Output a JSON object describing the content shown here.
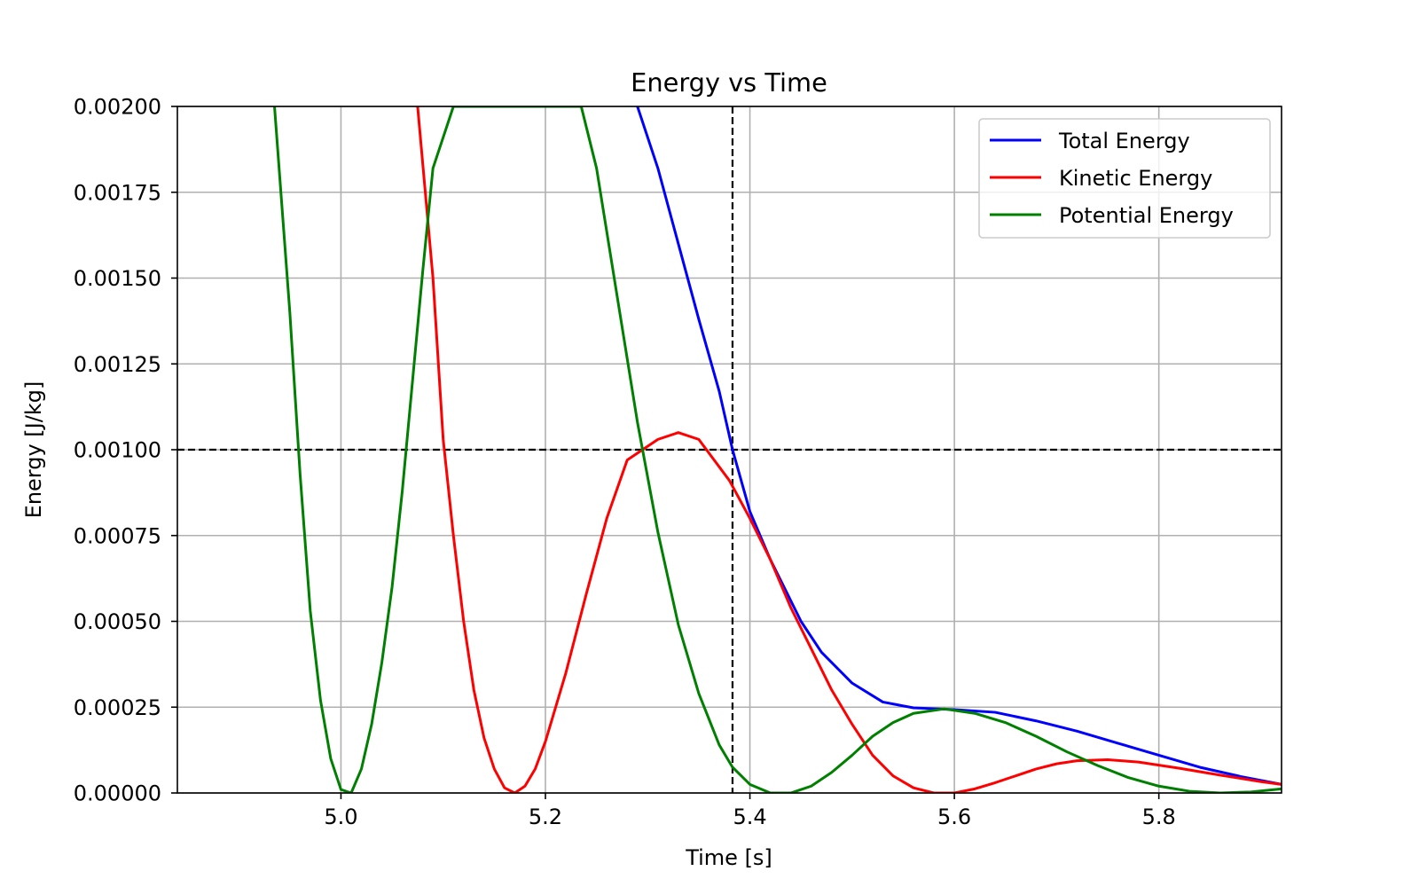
{
  "chart_data": {
    "type": "line",
    "title": "Energy vs Time",
    "xlabel": "Time [s]",
    "ylabel": "Energy [J/kg]",
    "xlim": [
      4.84,
      5.92
    ],
    "ylim": [
      0,
      0.002
    ],
    "grid": true,
    "legend_position": "top-right",
    "x_ticks": [
      5.0,
      5.2,
      5.4,
      5.6,
      5.8
    ],
    "x_tick_labels": [
      "5.0",
      "5.2",
      "5.4",
      "5.6",
      "5.8"
    ],
    "y_ticks": [
      0,
      0.00025,
      0.0005,
      0.00075,
      0.001,
      0.00125,
      0.0015,
      0.00175,
      0.002
    ],
    "y_tick_labels": [
      "0.00000",
      "0.00025",
      "0.00050",
      "0.00075",
      "0.00100",
      "0.00125",
      "0.00150",
      "0.00175",
      "0.00200"
    ],
    "reference_lines": [
      {
        "orientation": "horizontal",
        "value": 0.001,
        "color": "#000000",
        "style": "dashed"
      },
      {
        "orientation": "vertical",
        "value": 5.383,
        "color": "#000000",
        "style": "dashed"
      }
    ],
    "series": [
      {
        "name": "Total Energy",
        "color": "#0000ff",
        "points": [
          [
            5.29,
            0.002
          ],
          [
            5.31,
            0.00182
          ],
          [
            5.33,
            0.0016
          ],
          [
            5.35,
            0.00138
          ],
          [
            5.37,
            0.00117
          ],
          [
            5.383,
            0.001
          ],
          [
            5.4,
            0.00082
          ],
          [
            5.42,
            0.00068
          ],
          [
            5.45,
            0.0005
          ],
          [
            5.47,
            0.00041
          ],
          [
            5.5,
            0.00032
          ],
          [
            5.53,
            0.000265
          ],
          [
            5.56,
            0.000248
          ],
          [
            5.6,
            0.000243
          ],
          [
            5.64,
            0.000235
          ],
          [
            5.68,
            0.00021
          ],
          [
            5.72,
            0.00018
          ],
          [
            5.76,
            0.000145
          ],
          [
            5.8,
            0.00011
          ],
          [
            5.84,
            7.5e-05
          ],
          [
            5.88,
            4.8e-05
          ],
          [
            5.92,
            2.5e-05
          ]
        ]
      },
      {
        "name": "Kinetic Energy",
        "color": "#ff0000",
        "points": [
          [
            5.075,
            0.002
          ],
          [
            5.09,
            0.0015
          ],
          [
            5.1,
            0.00103
          ],
          [
            5.11,
            0.00075
          ],
          [
            5.12,
            0.0005
          ],
          [
            5.13,
            0.0003
          ],
          [
            5.14,
            0.00016
          ],
          [
            5.15,
            7e-05
          ],
          [
            5.16,
            1.5e-05
          ],
          [
            5.17,
            0.0
          ],
          [
            5.18,
            2e-05
          ],
          [
            5.19,
            7e-05
          ],
          [
            5.2,
            0.00015
          ],
          [
            5.22,
            0.00035
          ],
          [
            5.24,
            0.00058
          ],
          [
            5.26,
            0.0008
          ],
          [
            5.28,
            0.00097
          ],
          [
            5.3,
            0.00101
          ],
          [
            5.31,
            0.00103
          ],
          [
            5.33,
            0.00105
          ],
          [
            5.35,
            0.00103
          ],
          [
            5.36,
            0.00099
          ],
          [
            5.38,
            0.00091
          ],
          [
            5.4,
            0.0008
          ],
          [
            5.42,
            0.00068
          ],
          [
            5.44,
            0.00054
          ],
          [
            5.46,
            0.00042
          ],
          [
            5.48,
            0.0003
          ],
          [
            5.5,
            0.0002
          ],
          [
            5.52,
            0.00011
          ],
          [
            5.54,
            5e-05
          ],
          [
            5.56,
            1.5e-05
          ],
          [
            5.58,
            0.0
          ],
          [
            5.6,
            0.0
          ],
          [
            5.62,
            1.2e-05
          ],
          [
            5.64,
            3e-05
          ],
          [
            5.66,
            5e-05
          ],
          [
            5.68,
            7e-05
          ],
          [
            5.7,
            8.5e-05
          ],
          [
            5.72,
            9.4e-05
          ],
          [
            5.75,
            9.7e-05
          ],
          [
            5.78,
            9e-05
          ],
          [
            5.82,
            7.2e-05
          ],
          [
            5.86,
            5.2e-05
          ],
          [
            5.9,
            3.3e-05
          ],
          [
            5.92,
            2.5e-05
          ]
        ]
      },
      {
        "name": "Potential Energy",
        "color": "#008000",
        "points": [
          [
            4.935,
            0.002
          ],
          [
            4.95,
            0.0014
          ],
          [
            4.96,
            0.00093
          ],
          [
            4.97,
            0.00053
          ],
          [
            4.98,
            0.00027
          ],
          [
            4.99,
            0.0001
          ],
          [
            5.0,
            1e-05
          ],
          [
            5.01,
            0.0
          ],
          [
            5.02,
            7e-05
          ],
          [
            5.03,
            0.0002
          ],
          [
            5.04,
            0.00038
          ],
          [
            5.05,
            0.0006
          ],
          [
            5.06,
            0.00088
          ],
          [
            5.07,
            0.0012
          ],
          [
            5.08,
            0.00152
          ],
          [
            5.09,
            0.00182
          ],
          [
            5.11,
            0.002
          ],
          [
            5.235,
            0.002
          ],
          [
            5.25,
            0.00182
          ],
          [
            5.27,
            0.00145
          ],
          [
            5.29,
            0.00108
          ],
          [
            5.31,
            0.00076
          ],
          [
            5.33,
            0.00049
          ],
          [
            5.35,
            0.00029
          ],
          [
            5.37,
            0.00014
          ],
          [
            5.383,
            7.5e-05
          ],
          [
            5.4,
            2.5e-05
          ],
          [
            5.42,
            0.0
          ],
          [
            5.44,
            0.0
          ],
          [
            5.46,
            2e-05
          ],
          [
            5.48,
            6e-05
          ],
          [
            5.5,
            0.00011
          ],
          [
            5.52,
            0.000165
          ],
          [
            5.54,
            0.000205
          ],
          [
            5.56,
            0.000232
          ],
          [
            5.59,
            0.000245
          ],
          [
            5.62,
            0.000232
          ],
          [
            5.65,
            0.000205
          ],
          [
            5.68,
            0.000165
          ],
          [
            5.71,
            0.00012
          ],
          [
            5.74,
            8e-05
          ],
          [
            5.77,
            4.5e-05
          ],
          [
            5.8,
            2e-05
          ],
          [
            5.83,
            5e-06
          ],
          [
            5.86,
            0.0
          ],
          [
            5.89,
            3e-06
          ],
          [
            5.92,
            1.2e-05
          ]
        ]
      }
    ]
  }
}
